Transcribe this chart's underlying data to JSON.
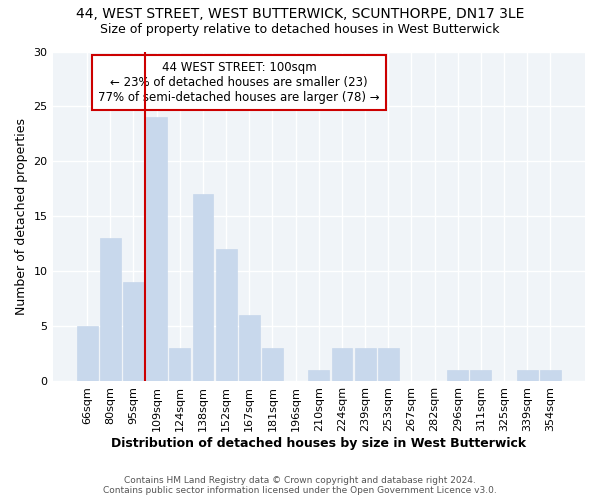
{
  "title1": "44, WEST STREET, WEST BUTTERWICK, SCUNTHORPE, DN17 3LE",
  "title2": "Size of property relative to detached houses in West Butterwick",
  "xlabel": "Distribution of detached houses by size in West Butterwick",
  "ylabel": "Number of detached properties",
  "categories": [
    "66sqm",
    "80sqm",
    "95sqm",
    "109sqm",
    "124sqm",
    "138sqm",
    "152sqm",
    "167sqm",
    "181sqm",
    "196sqm",
    "210sqm",
    "224sqm",
    "239sqm",
    "253sqm",
    "267sqm",
    "282sqm",
    "296sqm",
    "311sqm",
    "325sqm",
    "339sqm",
    "354sqm"
  ],
  "values": [
    5,
    13,
    9,
    24,
    3,
    17,
    12,
    6,
    3,
    0,
    1,
    3,
    3,
    3,
    0,
    0,
    1,
    1,
    0,
    1,
    1
  ],
  "bar_color": "#c8d8ec",
  "bar_edgecolor": "#c8d8ec",
  "bg_color": "#ffffff",
  "plot_bg_color": "#f0f4f8",
  "grid_color": "#ffffff",
  "red_line_index": 2,
  "annotation_line1": "44 WEST STREET: 100sqm",
  "annotation_line2": "← 23% of detached houses are smaller (23)",
  "annotation_line3": "77% of semi-detached houses are larger (78) →",
  "box_color": "#ffffff",
  "box_edgecolor": "#cc0000",
  "red_line_color": "#cc0000",
  "footer1": "Contains HM Land Registry data © Crown copyright and database right 2024.",
  "footer2": "Contains public sector information licensed under the Open Government Licence v3.0.",
  "ylim": [
    0,
    30
  ],
  "yticks": [
    0,
    5,
    10,
    15,
    20,
    25,
    30
  ]
}
